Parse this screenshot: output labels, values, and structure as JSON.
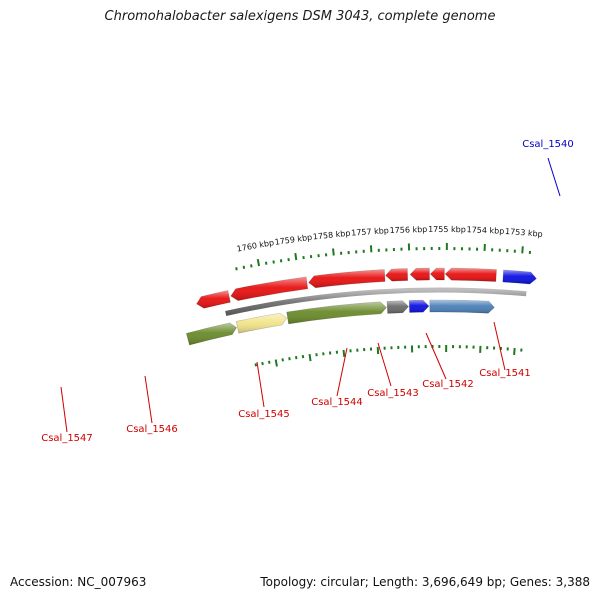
{
  "title": "Chromohalobacter salexigens DSM 3043, complete genome",
  "footer": {
    "accession": "Accession: NC_007963",
    "topology": "Topology: circular; Length: 3,696,649 bp; Genes: 3,388"
  },
  "colors": {
    "red": "#e81010",
    "blue": "#0b10e0",
    "steel": "#4a80b8",
    "olive": "#6a8a2a",
    "pale": "#f2e48a",
    "gray": "#6a6a6a",
    "tick": "#1f7a1f",
    "label_red": "#d00000",
    "label_blue": "#0000cc"
  },
  "scale": [
    {
      "label": "1753 kbp"
    },
    {
      "label": "1754 kbp"
    },
    {
      "label": "1755 kbp"
    },
    {
      "label": "1756 kbp"
    },
    {
      "label": "1757 kbp"
    },
    {
      "label": "1758 kbp"
    },
    {
      "label": "1759 kbp"
    },
    {
      "label": "1760 kbp"
    }
  ],
  "gene_labels": [
    {
      "name": "Csal_1540",
      "color": "blue"
    },
    {
      "name": "Csal_1541",
      "color": "red"
    },
    {
      "name": "Csal_1542",
      "color": "red"
    },
    {
      "name": "Csal_1543",
      "color": "red"
    },
    {
      "name": "Csal_1544",
      "color": "red"
    },
    {
      "name": "Csal_1545",
      "color": "red"
    },
    {
      "name": "Csal_1546",
      "color": "red"
    },
    {
      "name": "Csal_1547",
      "color": "red"
    }
  ],
  "feature_tracks": {
    "upper_strand": [
      "blue",
      "red",
      "red",
      "red",
      "red",
      "red",
      "red",
      "red"
    ],
    "lower_strand": [
      "steel",
      "blue",
      "gray",
      "olive",
      "pale",
      "olive"
    ]
  }
}
